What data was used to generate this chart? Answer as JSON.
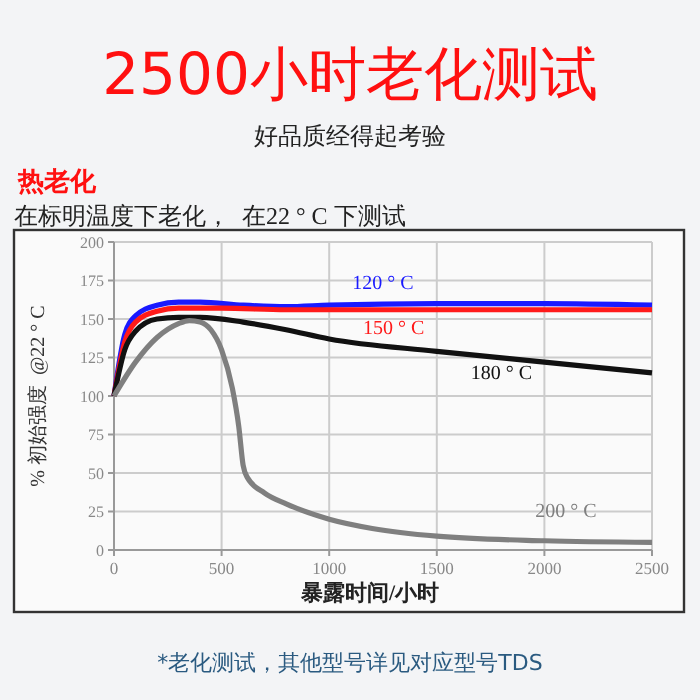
{
  "chart_data": {
    "type": "line",
    "title": "2500小时老化测试",
    "subtitle": "好品质经得起考验",
    "annotations": [
      "热老化",
      "在标明温度下老化，  在22 ° C 下测试",
      "*老化测试，其他型号详见对应型号TDS"
    ],
    "xlabel": "暴露时间/小时",
    "ylabel": "% 初始强度  @22 ° C",
    "xlim": [
      0,
      2500
    ],
    "xticks": [
      0,
      500,
      1000,
      1500,
      2000,
      2500
    ],
    "ylim": [
      0,
      200
    ],
    "yticks": [
      0,
      25,
      50,
      75,
      100,
      125,
      150,
      175,
      200
    ],
    "grid": true,
    "marker": "none",
    "line_style": "solid",
    "series": [
      {
        "name": "120 ° C",
        "color": "#1a1aff",
        "x": [
          0,
          50,
          100,
          200,
          300,
          400,
          600,
          800,
          1000,
          1500,
          2000,
          2500
        ],
        "values": [
          100,
          140,
          152,
          159,
          161,
          161,
          159,
          158,
          159,
          160,
          160,
          159
        ]
      },
      {
        "name": "150 ° C",
        "color": "#ff1a1a",
        "x": [
          0,
          50,
          100,
          200,
          300,
          500,
          800,
          1500,
          2000,
          2500
        ],
        "values": [
          100,
          135,
          148,
          155,
          157,
          157,
          156,
          156,
          156,
          156
        ]
      },
      {
        "name": "180 ° C",
        "color": "#111111",
        "x": [
          0,
          50,
          100,
          200,
          300,
          400,
          600,
          800,
          1000,
          1500,
          2000,
          2500
        ],
        "values": [
          100,
          130,
          142,
          150,
          151,
          151,
          148,
          143,
          137,
          129,
          122,
          115
        ]
      },
      {
        "name": "200 ° C",
        "color": "#7f7f7f",
        "x": [
          0,
          100,
          200,
          300,
          350,
          400,
          450,
          500,
          550,
          580,
          600,
          620,
          700,
          800,
          1000,
          1200,
          1500,
          2000,
          2500
        ],
        "values": [
          100,
          122,
          138,
          147,
          149,
          148,
          143,
          130,
          105,
          80,
          55,
          47,
          37,
          30,
          20,
          14,
          9,
          6,
          5
        ]
      }
    ]
  }
}
